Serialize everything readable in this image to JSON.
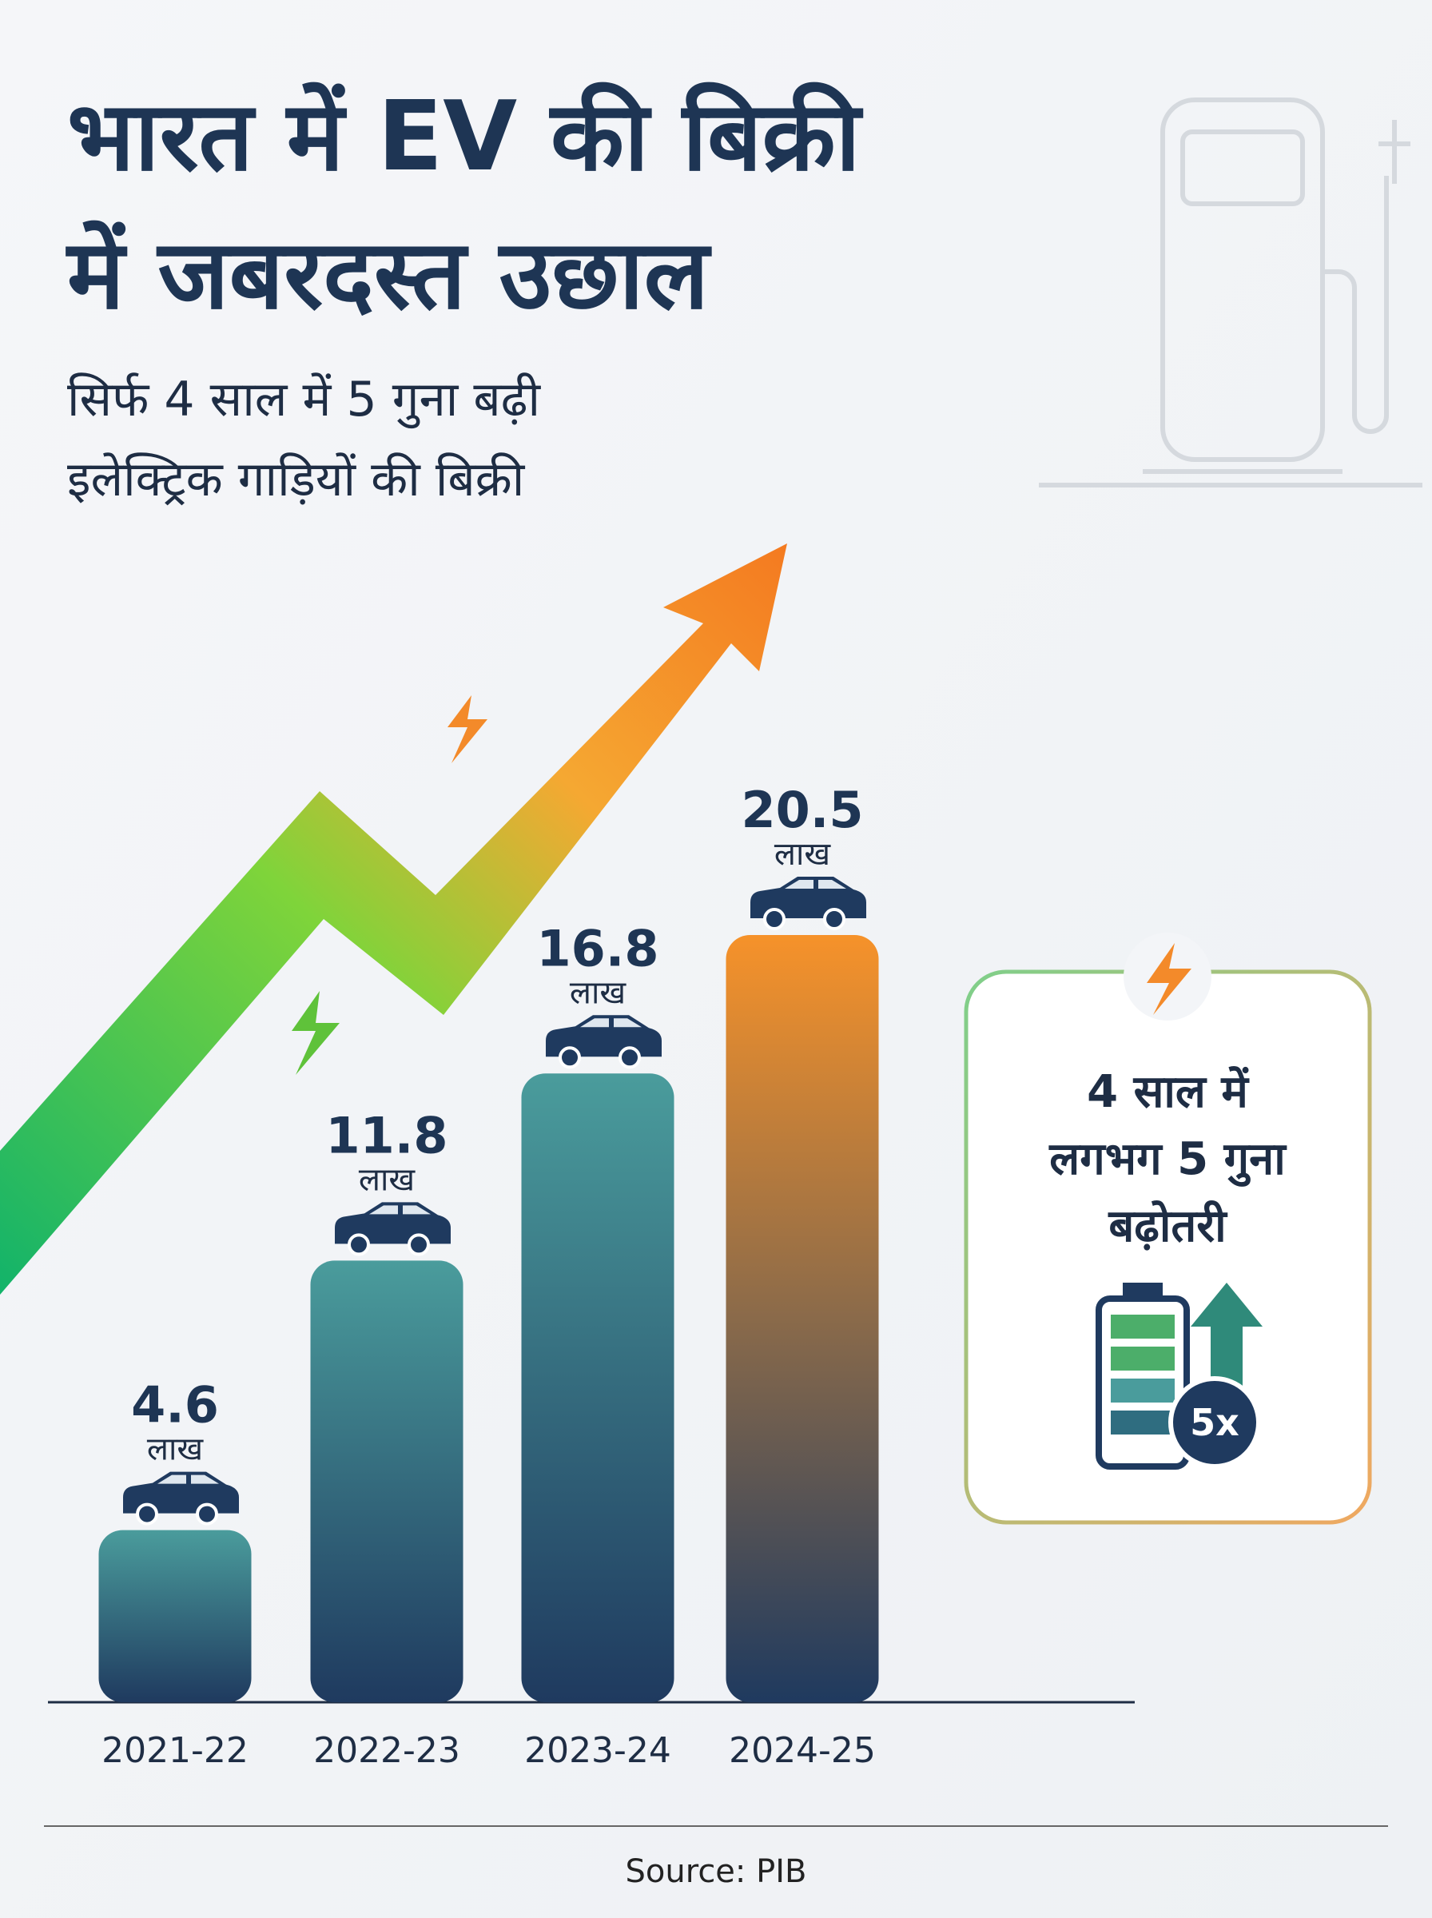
{
  "chart_data": {
    "type": "bar",
    "title": [
      "भारत में EV की बिक्री",
      "में जबरदस्त उछाल"
    ],
    "subtitle": [
      "सिर्फ 4 साल में 5 गुना बढ़ी",
      "इलेक्ट्रिक गाड़ियों की बिक्री"
    ],
    "categories": [
      "2021-22",
      "2022-23",
      "2023-24",
      "2024-25"
    ],
    "values": [
      4.6,
      11.8,
      16.8,
      20.5
    ],
    "unit": "लाख",
    "callout": [
      "4 साल में",
      "लगभग 5 गुना",
      "बढ़ोतरी"
    ],
    "badge": "5x",
    "source": "Source: PIB"
  }
}
